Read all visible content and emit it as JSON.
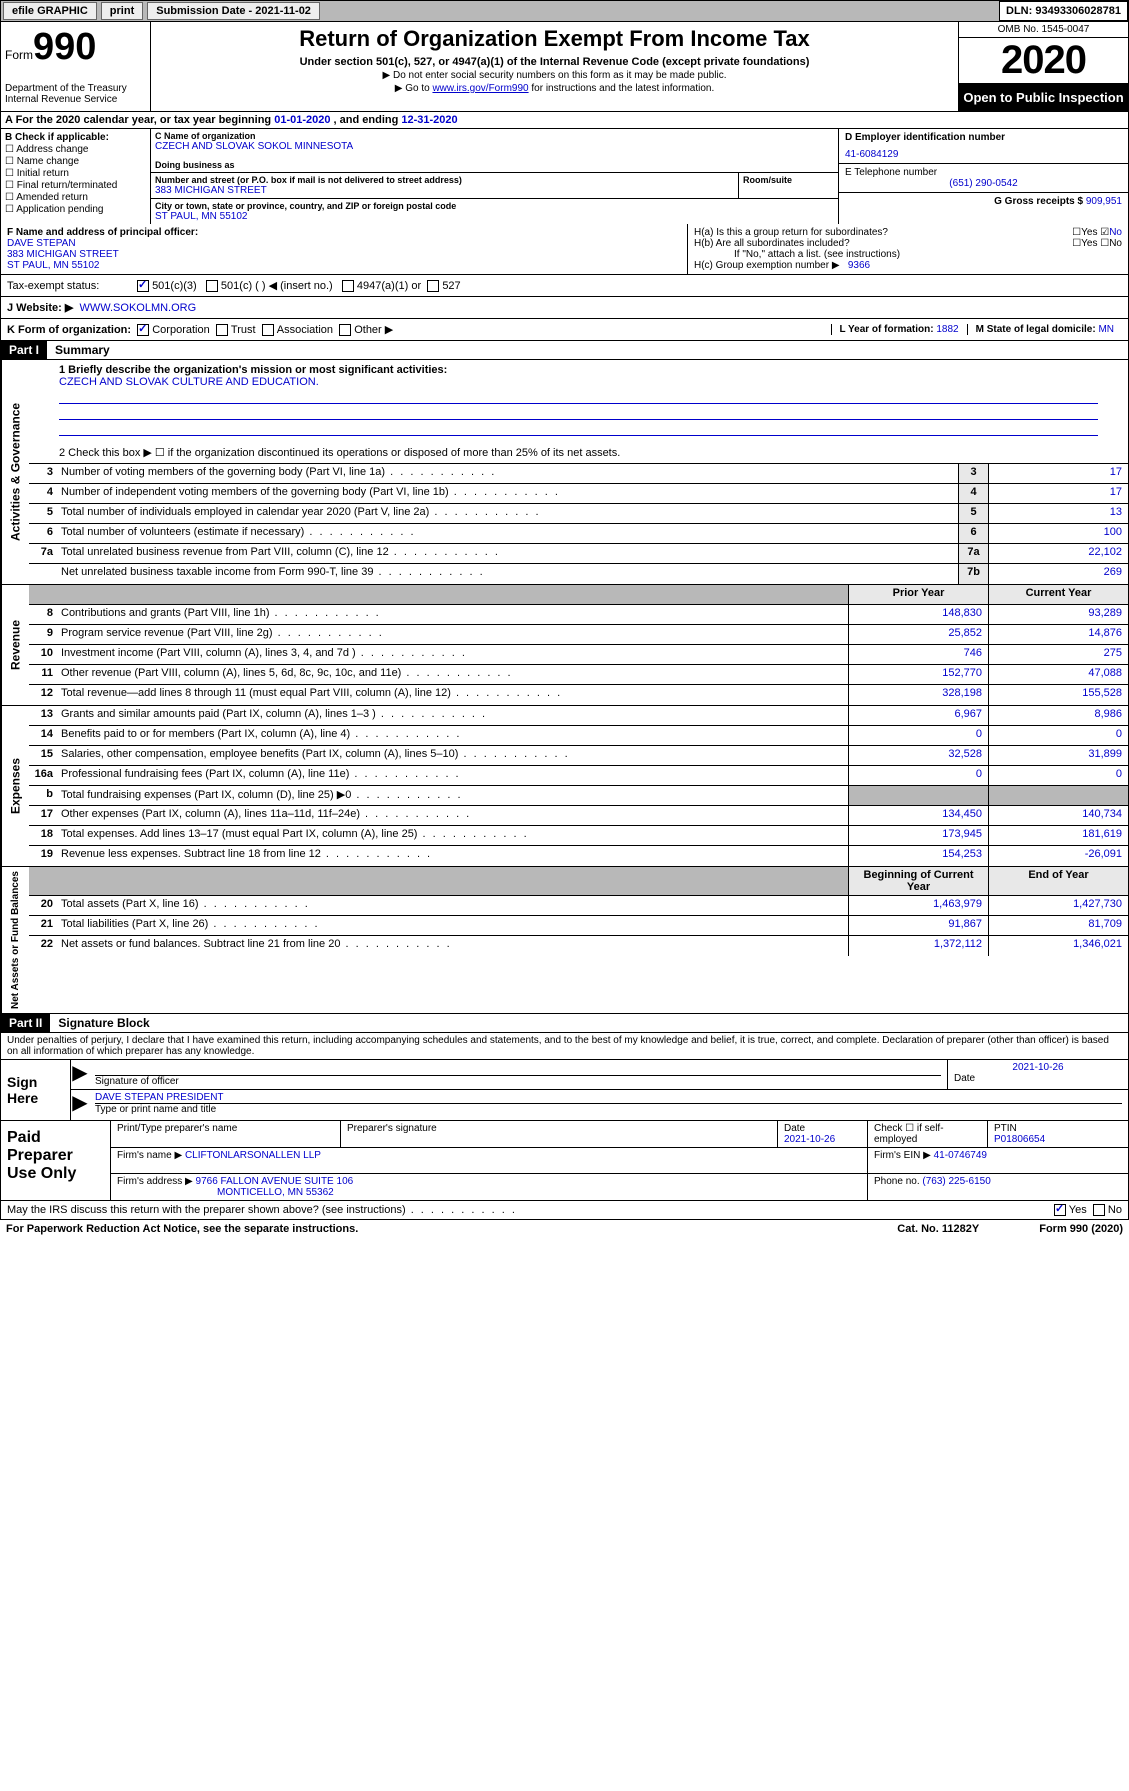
{
  "topbar": {
    "efile": "efile GRAPHIC",
    "print": "print",
    "submission": "Submission Date - 2021-11-02",
    "dln": "DLN: 93493306028781"
  },
  "header": {
    "form_word": "Form",
    "form_num": "990",
    "dept": "Department of the Treasury\nInternal Revenue Service",
    "title": "Return of Organization Exempt From Income Tax",
    "sub": "Under section 501(c), 527, or 4947(a)(1) of the Internal Revenue Code (except private foundations)",
    "note1": "▶ Do not enter social security numbers on this form as it may be made public.",
    "note2_pre": "▶ Go to ",
    "note2_link": "www.irs.gov/Form990",
    "note2_post": " for instructions and the latest information.",
    "omb": "OMB No. 1545-0047",
    "year": "2020",
    "open": "Open to Public Inspection"
  },
  "row_a": {
    "text_pre": "A For the 2020 calendar year, or tax year beginning ",
    "begin": "01-01-2020",
    "mid": " , and ending ",
    "end": "12-31-2020"
  },
  "col_b": {
    "label": "B Check if applicable:",
    "items": [
      "Address change",
      "Name change",
      "Initial return",
      "Final return/terminated",
      "Amended return",
      "Application pending"
    ]
  },
  "col_c": {
    "name_label": "C Name of organization",
    "name": "CZECH AND SLOVAK SOKOL MINNESOTA",
    "dba_label": "Doing business as",
    "dba": "",
    "addr_label": "Number and street (or P.O. box if mail is not delivered to street address)",
    "addr": "383 MICHIGAN STREET",
    "room_label": "Room/suite",
    "city_label": "City or town, state or province, country, and ZIP or foreign postal code",
    "city": "ST PAUL, MN  55102"
  },
  "col_d": {
    "ein_label": "D Employer identification number",
    "ein": "41-6084129",
    "tel_label": "E Telephone number",
    "tel": "(651) 290-0542",
    "gross_label": "G Gross receipts $ ",
    "gross": "909,951"
  },
  "col_f": {
    "label": "F Name and address of principal officer:",
    "name": "DAVE STEPAN",
    "addr1": "383 MICHIGAN STREET",
    "addr2": "ST PAUL, MN  55102"
  },
  "col_h": {
    "ha": "H(a)  Is this a group return for subordinates?",
    "hb": "H(b)  Are all subordinates included?",
    "hb_note": "If \"No,\" attach a list. (see instructions)",
    "hc": "H(c)  Group exemption number ▶",
    "hc_val": "9366"
  },
  "row_i": {
    "label": "Tax-exempt status:",
    "opt1": "501(c)(3)",
    "opt2": "501(c) (  ) ◀ (insert no.)",
    "opt3": "4947(a)(1) or",
    "opt4": "527"
  },
  "row_j": {
    "label": "J Website: ▶",
    "val": "WWW.SOKOLMN.ORG"
  },
  "row_k": {
    "label": "K Form of organization:",
    "opts": [
      "Corporation",
      "Trust",
      "Association",
      "Other ▶"
    ],
    "l_label": "L Year of formation: ",
    "l_val": "1882",
    "m_label": "M State of legal domicile: ",
    "m_val": "MN"
  },
  "part1": {
    "header": "Part I",
    "title": "Summary",
    "line1_label": "1  Briefly describe the organization's mission or most significant activities:",
    "line1_val": "CZECH AND SLOVAK CULTURE AND EDUCATION.",
    "line2": "2   Check this box ▶ ☐  if the organization discontinued its operations or disposed of more than 25% of its net assets."
  },
  "sides": {
    "ag": "Activities & Governance",
    "rev": "Revenue",
    "exp": "Expenses",
    "net": "Net Assets or Fund Balances"
  },
  "govrows": [
    {
      "n": "3",
      "d": "Number of voting members of the governing body (Part VI, line 1a)",
      "b": "3",
      "v": "17"
    },
    {
      "n": "4",
      "d": "Number of independent voting members of the governing body (Part VI, line 1b)",
      "b": "4",
      "v": "17"
    },
    {
      "n": "5",
      "d": "Total number of individuals employed in calendar year 2020 (Part V, line 2a)",
      "b": "5",
      "v": "13"
    },
    {
      "n": "6",
      "d": "Total number of volunteers (estimate if necessary)",
      "b": "6",
      "v": "100"
    },
    {
      "n": "7a",
      "d": "Total unrelated business revenue from Part VIII, column (C), line 12",
      "b": "7a",
      "v": "22,102"
    },
    {
      "n": "",
      "d": "Net unrelated business taxable income from Form 990-T, line 39",
      "b": "7b",
      "v": "269"
    }
  ],
  "pycy": {
    "py": "Prior Year",
    "cy": "Current Year"
  },
  "revrows": [
    {
      "n": "8",
      "d": "Contributions and grants (Part VIII, line 1h)",
      "p": "148,830",
      "c": "93,289"
    },
    {
      "n": "9",
      "d": "Program service revenue (Part VIII, line 2g)",
      "p": "25,852",
      "c": "14,876"
    },
    {
      "n": "10",
      "d": "Investment income (Part VIII, column (A), lines 3, 4, and 7d )",
      "p": "746",
      "c": "275"
    },
    {
      "n": "11",
      "d": "Other revenue (Part VIII, column (A), lines 5, 6d, 8c, 9c, 10c, and 11e)",
      "p": "152,770",
      "c": "47,088"
    },
    {
      "n": "12",
      "d": "Total revenue—add lines 8 through 11 (must equal Part VIII, column (A), line 12)",
      "p": "328,198",
      "c": "155,528"
    }
  ],
  "exprows": [
    {
      "n": "13",
      "d": "Grants and similar amounts paid (Part IX, column (A), lines 1–3 )",
      "p": "6,967",
      "c": "8,986"
    },
    {
      "n": "14",
      "d": "Benefits paid to or for members (Part IX, column (A), line 4)",
      "p": "0",
      "c": "0"
    },
    {
      "n": "15",
      "d": "Salaries, other compensation, employee benefits (Part IX, column (A), lines 5–10)",
      "p": "32,528",
      "c": "31,899"
    },
    {
      "n": "16a",
      "d": "Professional fundraising fees (Part IX, column (A), line 11e)",
      "p": "0",
      "c": "0"
    },
    {
      "n": "b",
      "d": "Total fundraising expenses (Part IX, column (D), line 25) ▶0",
      "p": "",
      "c": "",
      "grey": true
    },
    {
      "n": "17",
      "d": "Other expenses (Part IX, column (A), lines 11a–11d, 11f–24e)",
      "p": "134,450",
      "c": "140,734"
    },
    {
      "n": "18",
      "d": "Total expenses. Add lines 13–17 (must equal Part IX, column (A), line 25)",
      "p": "173,945",
      "c": "181,619"
    },
    {
      "n": "19",
      "d": "Revenue less expenses. Subtract line 18 from line 12",
      "p": "154,253",
      "c": "-26,091"
    }
  ],
  "bycy": {
    "b": "Beginning of Current Year",
    "e": "End of Year"
  },
  "netrows": [
    {
      "n": "20",
      "d": "Total assets (Part X, line 16)",
      "p": "1,463,979",
      "c": "1,427,730"
    },
    {
      "n": "21",
      "d": "Total liabilities (Part X, line 26)",
      "p": "91,867",
      "c": "81,709"
    },
    {
      "n": "22",
      "d": "Net assets or fund balances. Subtract line 21 from line 20",
      "p": "1,372,112",
      "c": "1,346,021"
    }
  ],
  "part2": {
    "header": "Part II",
    "title": "Signature Block"
  },
  "perjury": "Under penalties of perjury, I declare that I have examined this return, including accompanying schedules and statements, and to the best of my knowledge and belief, it is true, correct, and complete. Declaration of preparer (other than officer) is based on all information of which preparer has any knowledge.",
  "sign": {
    "label": "Sign Here",
    "sig_label": "Signature of officer",
    "date": "2021-10-26",
    "date_label": "Date",
    "name": "DAVE STEPAN  PRESIDENT",
    "name_label": "Type or print name and title"
  },
  "paid": {
    "label": "Paid Preparer Use Only",
    "h1": "Print/Type preparer's name",
    "h2": "Preparer's signature",
    "h3": "Date",
    "date": "2021-10-26",
    "h4_pre": "Check ☐ if self-employed",
    "h5": "PTIN",
    "ptin": "P01806654",
    "firm_label": "Firm's name    ▶",
    "firm": "CLIFTONLARSONALLEN LLP",
    "ein_label": "Firm's EIN ▶",
    "ein": "41-0746749",
    "addr_label": "Firm's address ▶",
    "addr1": "9766 FALLON AVENUE SUITE 106",
    "addr2": "MONTICELLO, MN  55362",
    "phone_label": "Phone no. ",
    "phone": "(763) 225-6150"
  },
  "footer": {
    "discuss": "May the IRS discuss this return with the preparer shown above? (see instructions)",
    "paperwork": "For Paperwork Reduction Act Notice, see the separate instructions.",
    "cat": "Cat. No. 11282Y",
    "form": "Form 990 (2020)"
  }
}
